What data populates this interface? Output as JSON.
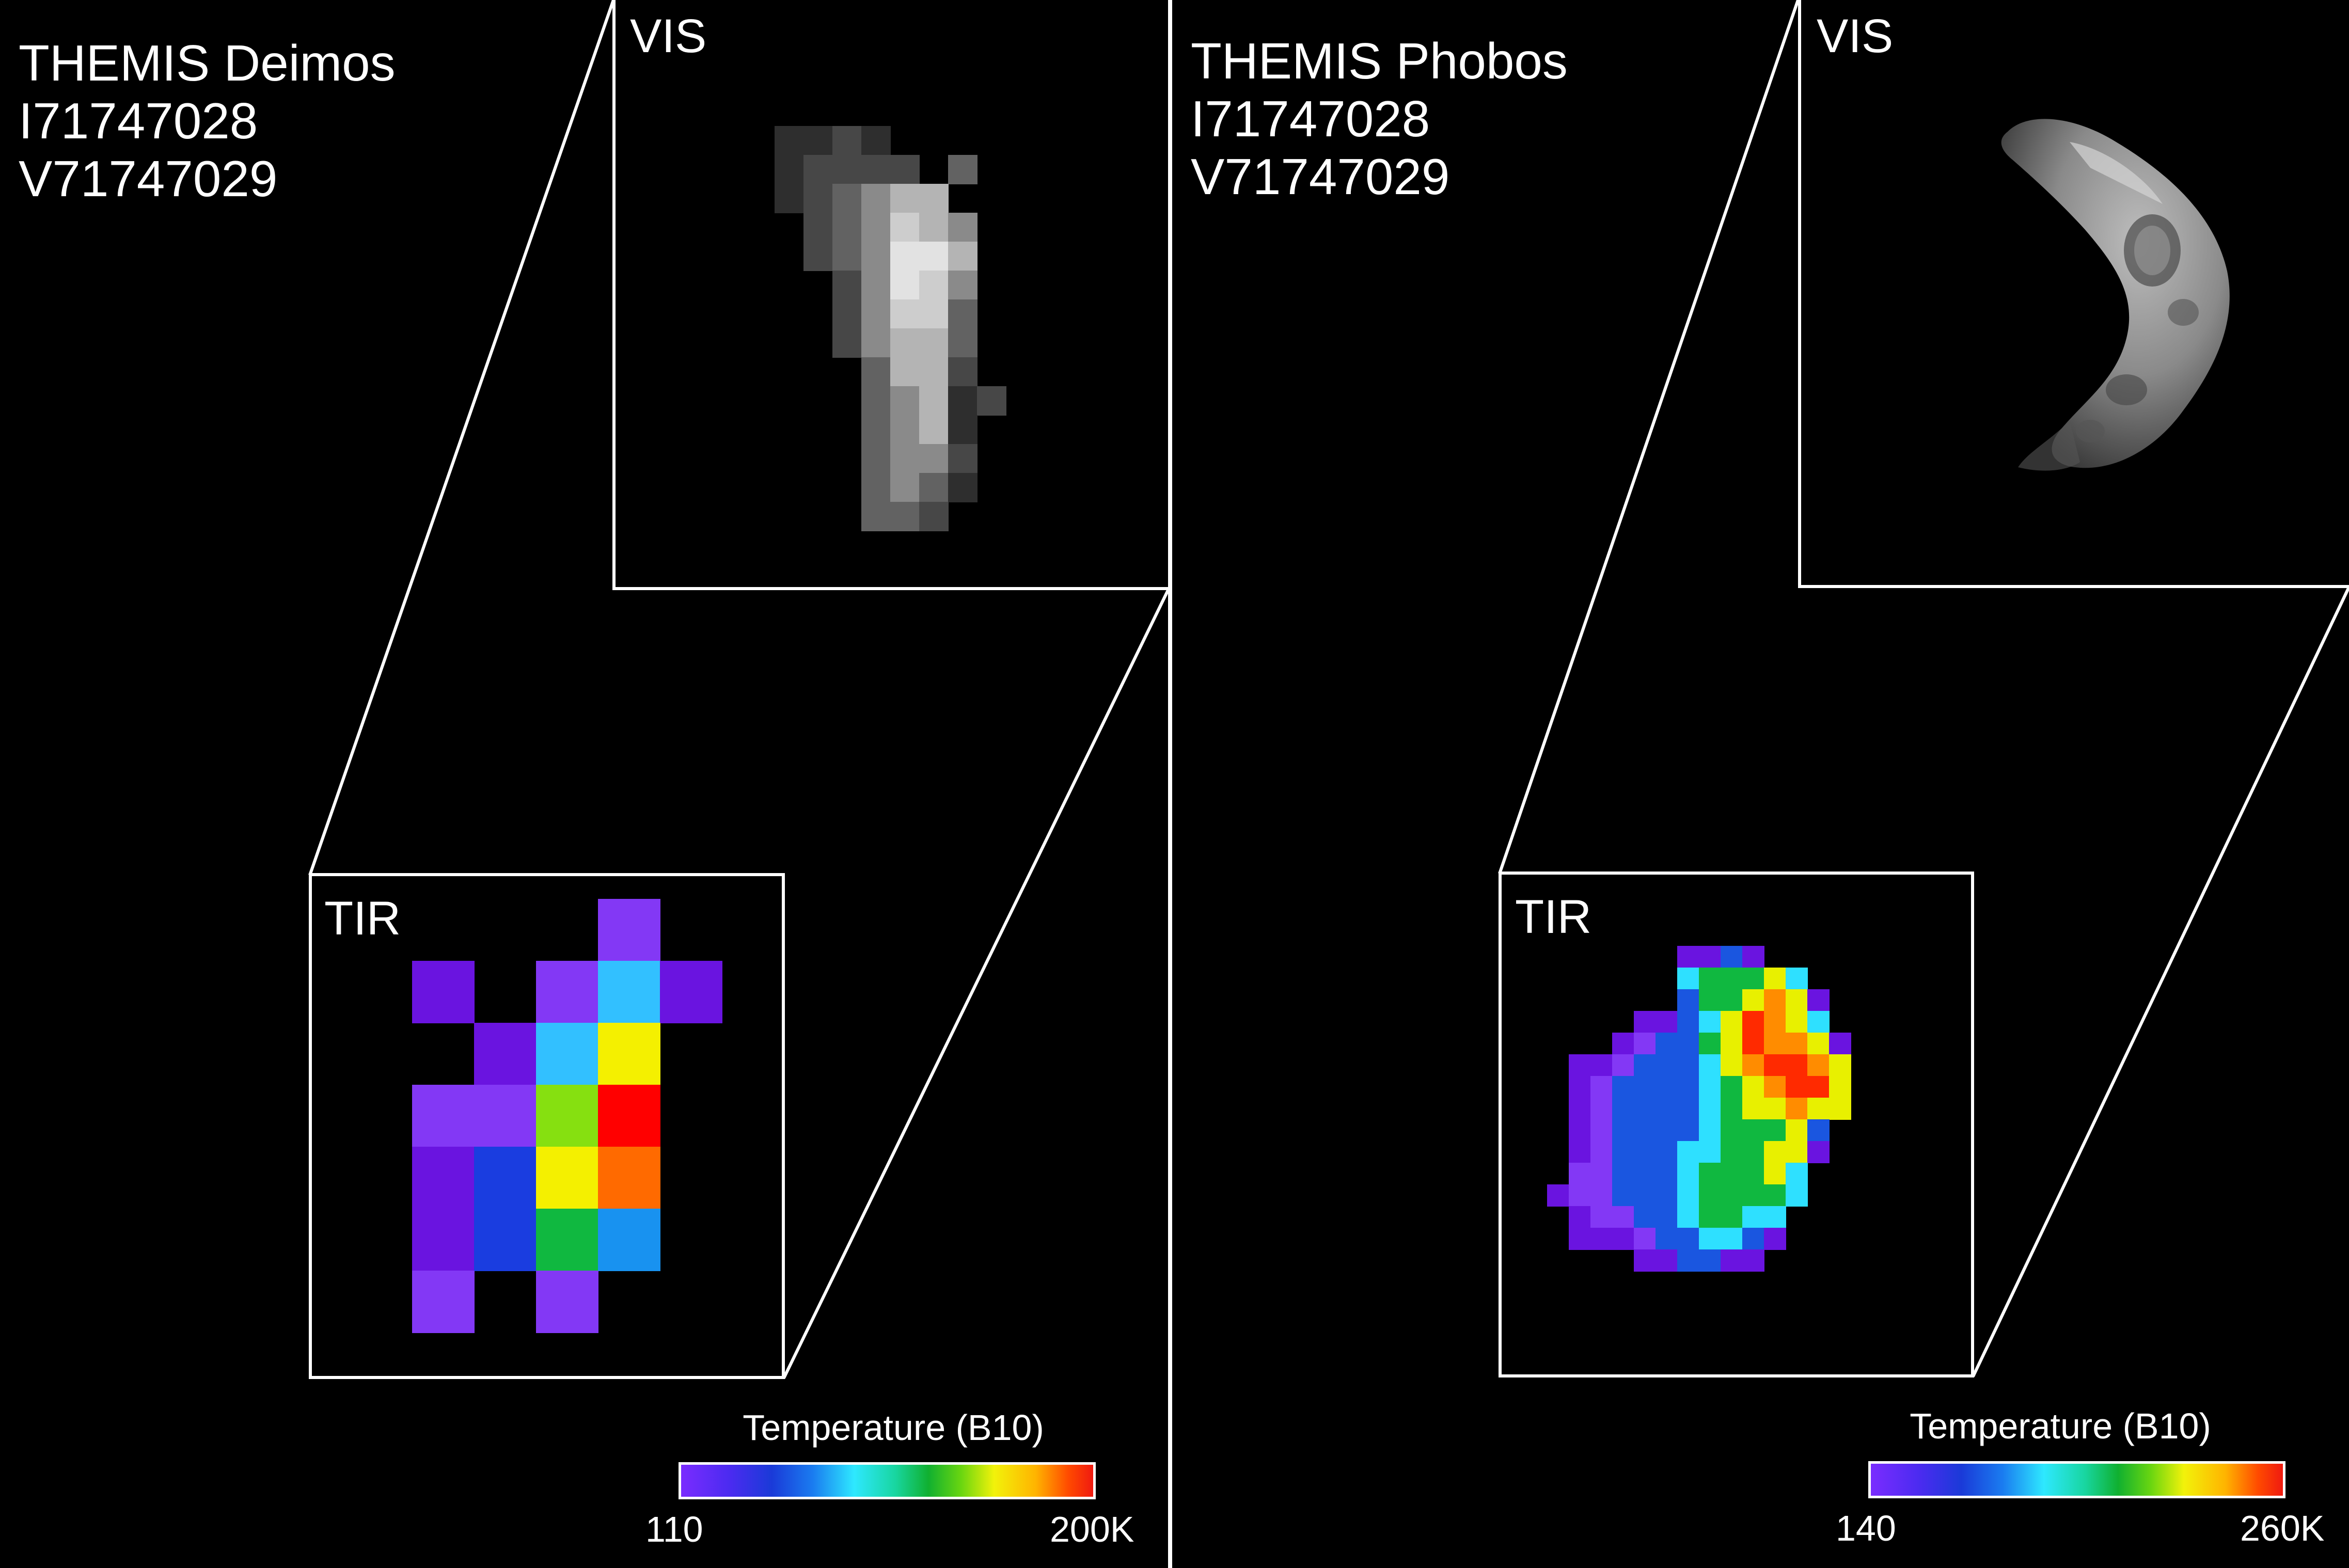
{
  "colors": {
    "background": "#000000",
    "frame": "#ffffff",
    "text": "#ffffff"
  },
  "left": {
    "title_lines": [
      "THEMIS Deimos",
      "I71747028",
      "V71747029"
    ],
    "vis_label": "VIS",
    "tir_label": "TIR",
    "colorbar": {
      "title": "Temperature (B10)",
      "min_label": "110",
      "max_label": "200K"
    }
  },
  "right": {
    "title_lines": [
      "THEMIS Phobos",
      "I71747028",
      "V71747029"
    ],
    "vis_label": "VIS",
    "tir_label": "TIR",
    "colorbar": {
      "title": "Temperature (B10)",
      "min_label": "140",
      "max_label": "260K"
    }
  }
}
